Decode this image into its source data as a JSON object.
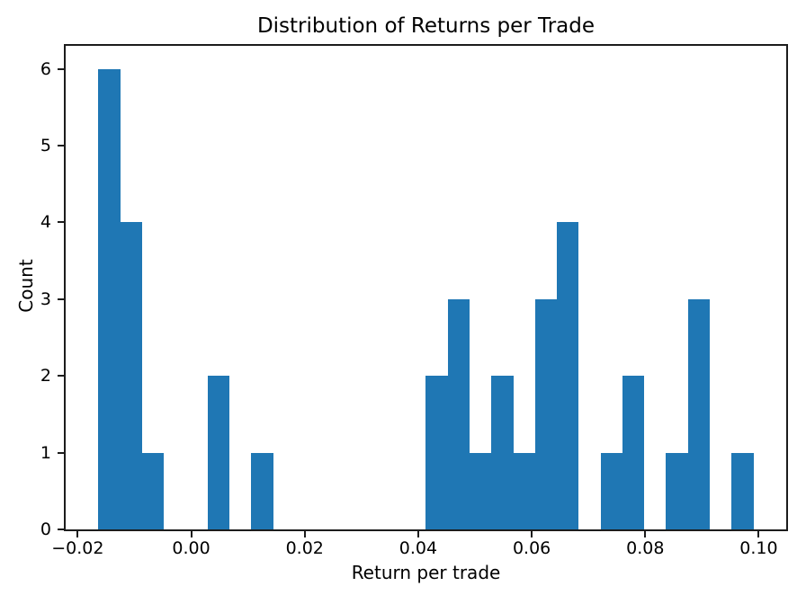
{
  "figure": {
    "background": "#ffffff",
    "spine_color": "#1c1c1c"
  },
  "chart_data": {
    "type": "bar",
    "subtype": "histogram",
    "title": "Distribution of Returns per Trade",
    "xlabel": "Return per trade",
    "ylabel": "Count",
    "bar_color": "#1f77b4",
    "grid": false,
    "legend": null,
    "bin_start": -0.01635,
    "bin_width": 0.0038471,
    "n_bins": 30,
    "counts": [
      6,
      4,
      1,
      0,
      0,
      2,
      0,
      1,
      0,
      0,
      0,
      0,
      0,
      0,
      0,
      2,
      3,
      1,
      2,
      1,
      3,
      4,
      0,
      1,
      2,
      0,
      1,
      3,
      0,
      1
    ],
    "total_observations": 38,
    "xlim": [
      -0.02212,
      0.10484
    ],
    "ylim": [
      0,
      6.3
    ],
    "xticks": [
      -0.02,
      0.0,
      0.02,
      0.04,
      0.06,
      0.08,
      0.1
    ],
    "xtick_labels": [
      "−0.02",
      "0.00",
      "0.02",
      "0.04",
      "0.06",
      "0.08",
      "0.10"
    ],
    "yticks": [
      0,
      1,
      2,
      3,
      4,
      5,
      6
    ],
    "ytick_labels": [
      "0",
      "1",
      "2",
      "3",
      "4",
      "5",
      "6"
    ]
  }
}
